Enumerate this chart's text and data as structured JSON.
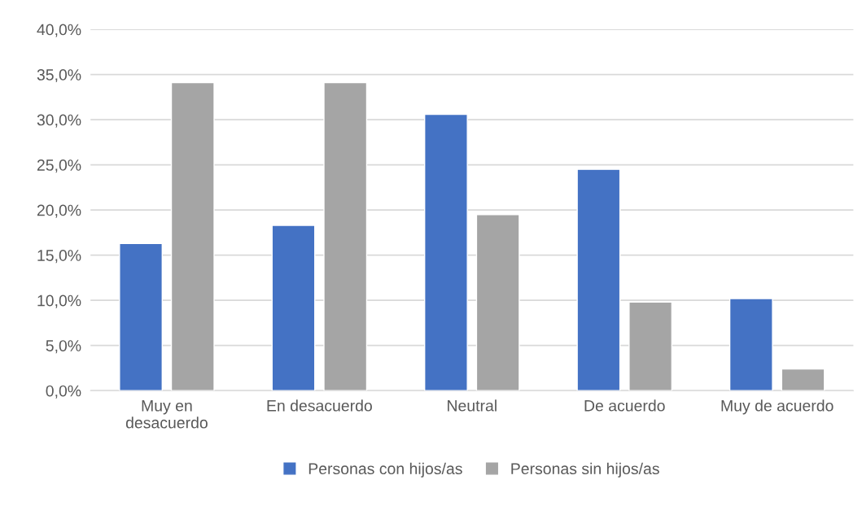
{
  "chart_data": {
    "type": "bar",
    "categories": [
      "Muy en\ndesacuerdo",
      "En desacuerdo",
      "Neutral",
      "De acuerdo",
      "Muy de acuerdo"
    ],
    "series": [
      {
        "name": "Personas con hijos/as",
        "color": "#4472c4",
        "values": [
          16.3,
          18.3,
          30.6,
          24.5,
          10.2
        ]
      },
      {
        "name": "Personas sin hijos/as",
        "color": "#a5a5a5",
        "values": [
          34.1,
          34.1,
          19.5,
          9.8,
          2.4
        ]
      }
    ],
    "ylim": [
      0,
      40
    ],
    "yticks": [
      {
        "value": 0,
        "label": "0,0%"
      },
      {
        "value": 5,
        "label": "5,0%"
      },
      {
        "value": 10,
        "label": "10,0%"
      },
      {
        "value": 15,
        "label": "15,0%"
      },
      {
        "value": 20,
        "label": "20,0%"
      },
      {
        "value": 25,
        "label": "25,0%"
      },
      {
        "value": 30,
        "label": "30,0%"
      },
      {
        "value": 35,
        "label": "35,0%"
      },
      {
        "value": 40,
        "label": "40,0%"
      }
    ],
    "grid": "y",
    "legend": "bottom"
  }
}
